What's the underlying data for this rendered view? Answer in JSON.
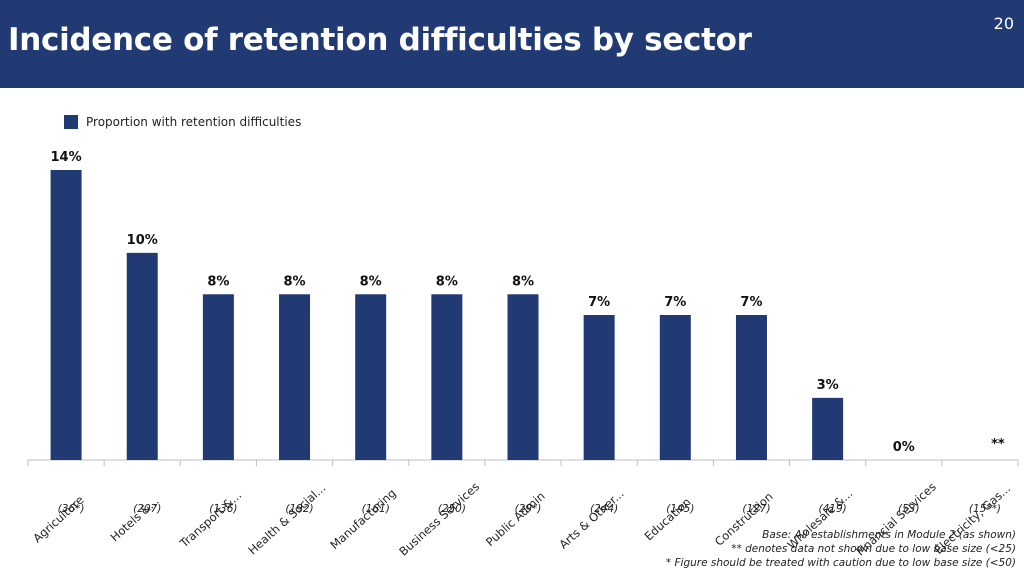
{
  "header": {
    "title": "Incidence of retention difficulties by sector",
    "page_number": "20"
  },
  "colors": {
    "header_bg": "#213a74",
    "bar": "#213a74"
  },
  "chart_data": {
    "type": "bar",
    "title": "Incidence of retention difficulties by sector",
    "xlabel": "",
    "ylabel": "",
    "ylim": [
      0,
      14
    ],
    "legend": {
      "position": "top-left",
      "entries": [
        "Proportion with retention difficulties"
      ]
    },
    "series": [
      {
        "name": "Proportion with retention difficulties",
        "values": [
          14,
          10,
          8,
          8,
          8,
          8,
          8,
          7,
          7,
          7,
          3,
          0,
          null
        ],
        "labels": [
          "14%",
          "10%",
          "8%",
          "8%",
          "8%",
          "8%",
          "8%",
          "7%",
          "7%",
          "7%",
          "3%",
          "0%",
          "**"
        ]
      }
    ],
    "categories": [
      "Agriculture",
      "Hotels &...",
      "Transport &...",
      "Health & Social...",
      "Manufacturing",
      "Business Services",
      "Public Admin",
      "Arts & Other...",
      "Education",
      "Construction",
      "Wholesale &...",
      "Financial Services",
      "Electricity, Gas..."
    ],
    "bases": [
      "(36*)",
      "(207)",
      "(136)",
      "(192)",
      "(161)",
      "(250)",
      "(29*)",
      "(244)",
      "(145)",
      "(127)",
      "(419)",
      "(53)",
      "(15**)"
    ]
  },
  "footnotes": [
    "Base: All establishments in Module 2 (as shown)",
    "** denotes data not shown due to low base size (<25)",
    "* Figure should be treated with caution due to low base size (<50)"
  ]
}
